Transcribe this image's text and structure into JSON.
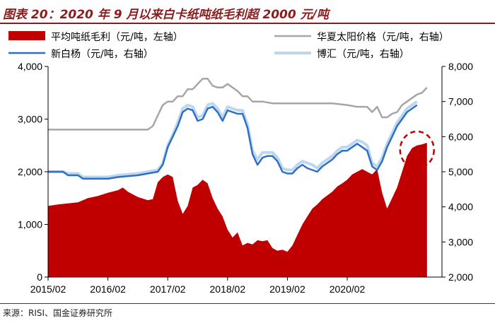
{
  "title": "图表 20：2020 年 9 月以来白卡纸吨纸毛利超 2000 元/吨",
  "source": "来源：RISI、国金证券研究所",
  "chart_data": {
    "type": "area+line",
    "x_ticks": [
      "2015/02",
      "2016/02",
      "2017/02",
      "2018/02",
      "2019/02",
      "2020/02"
    ],
    "x_range": [
      0,
      79
    ],
    "y_left": {
      "min": 0,
      "max": 4000,
      "ticks": [
        0,
        1000,
        2000,
        3000,
        4000
      ],
      "tick_labels": [
        "0",
        "1,000",
        "2,000",
        "3,000",
        "4,000"
      ]
    },
    "y_right": {
      "min": 2000,
      "max": 8000,
      "ticks": [
        2000,
        3000,
        4000,
        5000,
        6000,
        7000,
        8000
      ],
      "tick_labels": [
        "2,000",
        "3,000",
        "4,000",
        "5,000",
        "6,000",
        "7,000",
        "8,000"
      ]
    },
    "series": [
      {
        "name": "平均吨纸毛利（元/吨，左轴）",
        "kind": "area",
        "axis": "left",
        "color": "#c00000",
        "points": [
          [
            0,
            1350
          ],
          [
            2,
            1380
          ],
          [
            4,
            1400
          ],
          [
            6,
            1420
          ],
          [
            8,
            1500
          ],
          [
            10,
            1540
          ],
          [
            12,
            1600
          ],
          [
            14,
            1650
          ],
          [
            15,
            1700
          ],
          [
            16,
            1620
          ],
          [
            18,
            1520
          ],
          [
            19,
            1490
          ],
          [
            20,
            1460
          ],
          [
            21,
            1480
          ],
          [
            22,
            1800
          ],
          [
            23,
            1900
          ],
          [
            24,
            1950
          ],
          [
            25,
            1900
          ],
          [
            26,
            1450
          ],
          [
            27,
            1200
          ],
          [
            28,
            1350
          ],
          [
            29,
            1700
          ],
          [
            30,
            1750
          ],
          [
            31,
            1850
          ],
          [
            32,
            1780
          ],
          [
            33,
            1500
          ],
          [
            34,
            1300
          ],
          [
            35,
            1150
          ],
          [
            36,
            900
          ],
          [
            37,
            750
          ],
          [
            38,
            850
          ],
          [
            39,
            600
          ],
          [
            40,
            650
          ],
          [
            41,
            620
          ],
          [
            42,
            700
          ],
          [
            43,
            680
          ],
          [
            44,
            700
          ],
          [
            45,
            550
          ],
          [
            46,
            500
          ],
          [
            47,
            520
          ],
          [
            48,
            480
          ],
          [
            49,
            600
          ],
          [
            50,
            800
          ],
          [
            51,
            1000
          ],
          [
            52,
            1150
          ],
          [
            53,
            1300
          ],
          [
            54,
            1380
          ],
          [
            55,
            1480
          ],
          [
            56,
            1550
          ],
          [
            57,
            1620
          ],
          [
            58,
            1720
          ],
          [
            59,
            1780
          ],
          [
            60,
            1850
          ],
          [
            61,
            1950
          ],
          [
            62,
            2000
          ],
          [
            63,
            2050
          ],
          [
            64,
            2000
          ],
          [
            65,
            1950
          ],
          [
            66,
            2050
          ],
          [
            67,
            1600
          ],
          [
            68,
            1300
          ],
          [
            69,
            1500
          ],
          [
            70,
            1700
          ],
          [
            71,
            2000
          ],
          [
            72,
            2300
          ],
          [
            73,
            2450
          ],
          [
            74,
            2500
          ],
          [
            75,
            2520
          ],
          [
            76,
            2550
          ]
        ]
      },
      {
        "name": "华夏太阳价格（元/吨，右轴）",
        "kind": "line",
        "axis": "right",
        "color": "#a6a6a6",
        "points": [
          [
            0,
            6200
          ],
          [
            20,
            6200
          ],
          [
            21,
            6300
          ],
          [
            22,
            6600
          ],
          [
            23,
            6900
          ],
          [
            24,
            7000
          ],
          [
            25,
            7000
          ],
          [
            26,
            7150
          ],
          [
            27,
            7150
          ],
          [
            28,
            7350
          ],
          [
            29,
            7350
          ],
          [
            30,
            7500
          ],
          [
            31,
            7650
          ],
          [
            32,
            7650
          ],
          [
            33,
            7450
          ],
          [
            34,
            7400
          ],
          [
            35,
            7400
          ],
          [
            36,
            7500
          ],
          [
            37,
            7400
          ],
          [
            38,
            7300
          ],
          [
            39,
            7150
          ],
          [
            40,
            7150
          ],
          [
            41,
            7000
          ],
          [
            42,
            7000
          ],
          [
            43,
            7000
          ],
          [
            45,
            6950
          ],
          [
            57,
            6950
          ],
          [
            60,
            6900
          ],
          [
            62,
            6850
          ],
          [
            64,
            6850
          ],
          [
            65,
            6700
          ],
          [
            66,
            6850
          ],
          [
            67,
            6550
          ],
          [
            68,
            6550
          ],
          [
            69,
            6650
          ],
          [
            70,
            6700
          ],
          [
            71,
            6900
          ],
          [
            72,
            7000
          ],
          [
            73,
            7100
          ],
          [
            74,
            7200
          ],
          [
            75,
            7250
          ],
          [
            76,
            7400
          ]
        ]
      },
      {
        "name": "新白杨（元/吨，右轴）",
        "kind": "line",
        "axis": "right",
        "color": "#2e6fc8",
        "points": [
          [
            0,
            5000
          ],
          [
            3,
            5000
          ],
          [
            4,
            4900
          ],
          [
            6,
            4900
          ],
          [
            7,
            4800
          ],
          [
            12,
            4800
          ],
          [
            14,
            4850
          ],
          [
            18,
            4900
          ],
          [
            20,
            4950
          ],
          [
            22,
            5000
          ],
          [
            23,
            5200
          ],
          [
            24,
            5700
          ],
          [
            25,
            6000
          ],
          [
            26,
            6300
          ],
          [
            27,
            6700
          ],
          [
            28,
            6800
          ],
          [
            29,
            6750
          ],
          [
            30,
            6450
          ],
          [
            31,
            6500
          ],
          [
            32,
            6800
          ],
          [
            33,
            6850
          ],
          [
            34,
            6700
          ],
          [
            35,
            6450
          ],
          [
            36,
            6750
          ],
          [
            37,
            6700
          ],
          [
            38,
            6650
          ],
          [
            39,
            6650
          ],
          [
            40,
            6250
          ],
          [
            41,
            5500
          ],
          [
            42,
            5200
          ],
          [
            43,
            5400
          ],
          [
            44,
            5450
          ],
          [
            45,
            5450
          ],
          [
            46,
            5300
          ],
          [
            47,
            5000
          ],
          [
            48,
            4950
          ],
          [
            49,
            4950
          ],
          [
            50,
            5100
          ],
          [
            51,
            5200
          ],
          [
            52,
            5100
          ],
          [
            53,
            5050
          ],
          [
            54,
            5000
          ],
          [
            55,
            5150
          ],
          [
            56,
            5250
          ],
          [
            57,
            5350
          ],
          [
            58,
            5500
          ],
          [
            59,
            5600
          ],
          [
            60,
            5600
          ],
          [
            61,
            5700
          ],
          [
            62,
            5800
          ],
          [
            63,
            5700
          ],
          [
            64,
            5600
          ],
          [
            65,
            5150
          ],
          [
            66,
            5050
          ],
          [
            67,
            5300
          ],
          [
            68,
            5700
          ],
          [
            69,
            6000
          ],
          [
            70,
            6300
          ],
          [
            71,
            6500
          ],
          [
            72,
            6700
          ],
          [
            73,
            6800
          ],
          [
            74,
            6900
          ]
        ]
      },
      {
        "name": "博汇（元/吨，右轴）",
        "kind": "line",
        "axis": "right",
        "color": "#bdd7ee",
        "points": [
          [
            0,
            5000
          ],
          [
            3,
            5000
          ],
          [
            4,
            4950
          ],
          [
            6,
            4950
          ],
          [
            7,
            4850
          ],
          [
            12,
            4850
          ],
          [
            14,
            4900
          ],
          [
            18,
            4950
          ],
          [
            20,
            5000
          ],
          [
            22,
            5050
          ],
          [
            23,
            5250
          ],
          [
            24,
            5750
          ],
          [
            25,
            6050
          ],
          [
            26,
            6400
          ],
          [
            27,
            6800
          ],
          [
            28,
            6900
          ],
          [
            29,
            6850
          ],
          [
            30,
            6550
          ],
          [
            31,
            6600
          ],
          [
            32,
            6900
          ],
          [
            33,
            6950
          ],
          [
            34,
            6800
          ],
          [
            35,
            6550
          ],
          [
            36,
            6850
          ],
          [
            37,
            6800
          ],
          [
            38,
            6750
          ],
          [
            39,
            6750
          ],
          [
            40,
            6350
          ],
          [
            41,
            5600
          ],
          [
            42,
            5350
          ],
          [
            43,
            5550
          ],
          [
            44,
            5550
          ],
          [
            45,
            5550
          ],
          [
            46,
            5400
          ],
          [
            47,
            5100
          ],
          [
            48,
            5050
          ],
          [
            49,
            5050
          ],
          [
            50,
            5200
          ],
          [
            51,
            5300
          ],
          [
            52,
            5250
          ],
          [
            53,
            5200
          ],
          [
            54,
            5100
          ],
          [
            55,
            5250
          ],
          [
            56,
            5350
          ],
          [
            57,
            5450
          ],
          [
            58,
            5600
          ],
          [
            59,
            5700
          ],
          [
            60,
            5700
          ],
          [
            61,
            5800
          ],
          [
            62,
            5900
          ],
          [
            63,
            5850
          ],
          [
            64,
            5750
          ],
          [
            65,
            5250
          ],
          [
            66,
            5150
          ],
          [
            67,
            5400
          ],
          [
            68,
            5800
          ],
          [
            69,
            6100
          ],
          [
            70,
            6400
          ],
          [
            71,
            6600
          ],
          [
            72,
            6800
          ],
          [
            73,
            6900
          ],
          [
            74,
            7000
          ]
        ]
      }
    ],
    "legend": [
      {
        "label": "平均吨纸毛利（元/吨，左轴）",
        "color": "#c00000",
        "kind": "area"
      },
      {
        "label": "华夏太阳价格（元/吨，右轴）",
        "color": "#a6a6a6",
        "kind": "line"
      },
      {
        "label": "新白杨（元/吨，右轴）",
        "color": "#2e6fc8",
        "kind": "line"
      },
      {
        "label": "博汇（元/吨，右轴）",
        "color": "#bdd7ee",
        "kind": "line"
      }
    ],
    "annotation": {
      "type": "dashed-ellipse-with-arrow",
      "color": "#c00000",
      "target_x": 74,
      "note": "highlight recent rise"
    }
  }
}
